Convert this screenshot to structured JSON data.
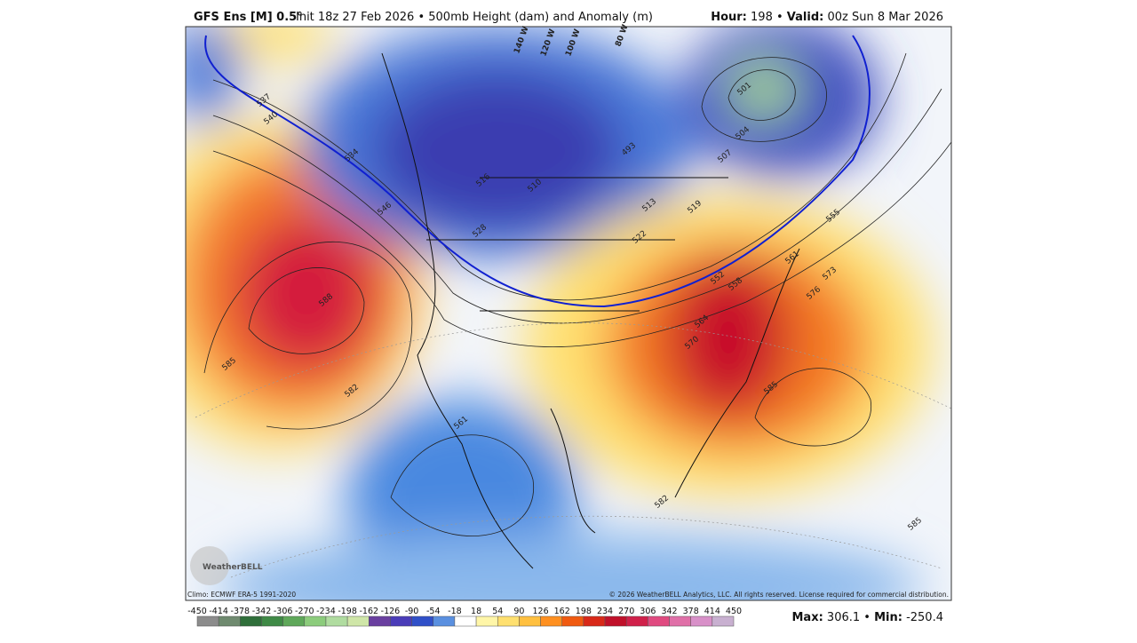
{
  "header": {
    "model": "GFS Ens [M] 0.5°",
    "init": "Init 18z 27 Feb 2026 • 500mb Height (dam) and Anomaly (m)",
    "hour_label": "Hour:",
    "hour": 198,
    "valid_label": "Valid:",
    "valid": "00z Sun 8 Mar 2026"
  },
  "map": {
    "longitude_labels": [
      "140 W",
      "120 W",
      "100 W",
      "80 W"
    ],
    "contour_labels": [
      "537",
      "540",
      "534",
      "546",
      "588",
      "585",
      "582",
      "501",
      "504",
      "507",
      "493",
      "510",
      "516",
      "528",
      "519",
      "522",
      "513",
      "555",
      "573",
      "576",
      "561",
      "558",
      "552",
      "564",
      "570",
      "585",
      "561",
      "582",
      "585"
    ],
    "logo": "WeatherBELL",
    "climo": "Climo: ECMWF ERA-5 1991-2020",
    "copyright": "© 2026 WeatherBELL Analytics, LLC. All rights reserved. License required for commercial distribution."
  },
  "colorbar": {
    "ticks": [
      -450,
      -414,
      -378,
      -342,
      -306,
      -270,
      -234,
      -198,
      -162,
      -126,
      -90,
      -54,
      -18,
      18,
      54,
      90,
      126,
      162,
      198,
      234,
      270,
      306,
      342,
      378,
      414,
      450
    ],
    "colors": [
      "#8c8c8c",
      "#6f8a6f",
      "#2f6f3a",
      "#3f8a46",
      "#5fa85a",
      "#8ccc7c",
      "#b0dca0",
      "#cfe6a8",
      "#6a3fa0",
      "#4a3cb8",
      "#3050c8",
      "#5a90e0",
      "#ffffff",
      "#fff6a8",
      "#ffe070",
      "#ffc040",
      "#ff9020",
      "#f05a10",
      "#d82818",
      "#c0102a",
      "#d0204a",
      "#e04a80",
      "#e070a8",
      "#d890c8",
      "#c8b0d0"
    ]
  },
  "stats": {
    "max_label": "Max:",
    "max": 306.1,
    "min_label": "Min:",
    "min": -250.4
  }
}
